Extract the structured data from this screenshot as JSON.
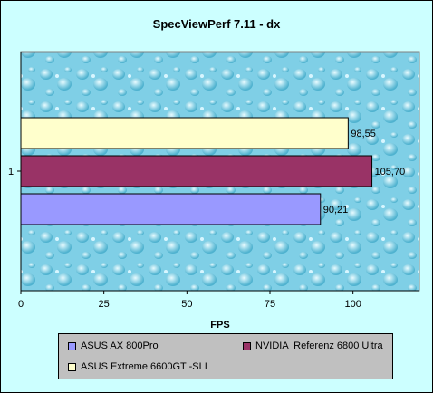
{
  "chart_data": {
    "type": "bar",
    "orientation": "horizontal",
    "title": "SpecViewPerf 7.11 - dx",
    "xlabel": "FPS",
    "ylabel": "",
    "categories": [
      "1"
    ],
    "xlim": [
      0,
      120
    ],
    "xticks": [
      0,
      25,
      50,
      75,
      100
    ],
    "grid": false,
    "legend_placement": "bottom",
    "series": [
      {
        "name": "ASUS AX 800Pro",
        "values": [
          90.21
        ],
        "label": "90,21",
        "color": "#9999ff"
      },
      {
        "name": "NVIDIA  Referenz 6800 Ultra",
        "values": [
          105.7
        ],
        "label": "105,70",
        "color": "#993366"
      },
      {
        "name": "ASUS Extreme 6600GT -SLI",
        "values": [
          98.55
        ],
        "label": "98,55",
        "color": "#ffffcc"
      }
    ],
    "tick_labels": [
      "0",
      "25",
      "50",
      "75",
      "100"
    ]
  }
}
